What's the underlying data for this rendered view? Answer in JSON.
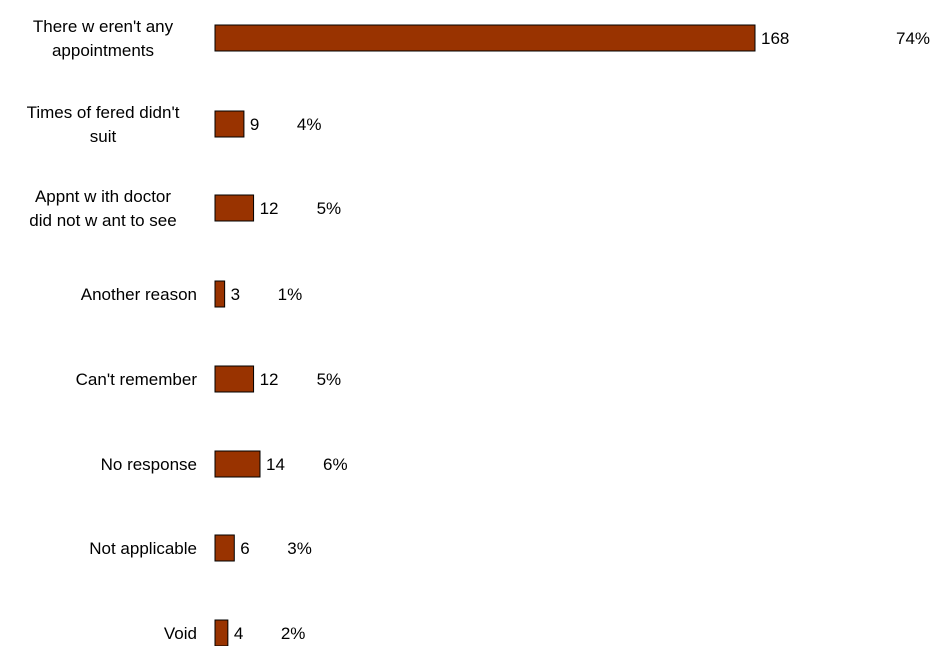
{
  "chart_data": {
    "type": "bar",
    "orientation": "horizontal",
    "categories": [
      [
        "There w eren't any",
        "appointments"
      ],
      [
        "Times of fered didn't",
        "suit"
      ],
      [
        "Appnt w ith doctor",
        "did not w ant to see"
      ],
      [
        "Another reason"
      ],
      [
        "Can't remember"
      ],
      [
        "No response"
      ],
      [
        "Not applicable"
      ],
      [
        "Void"
      ]
    ],
    "values": [
      168,
      9,
      12,
      3,
      12,
      14,
      6,
      4
    ],
    "percent_labels": [
      "74%",
      "4%",
      "5%",
      "1%",
      "5%",
      "6%",
      "3%",
      "2%"
    ],
    "bar_color": "#993300",
    "grid": false,
    "legend": "none"
  }
}
